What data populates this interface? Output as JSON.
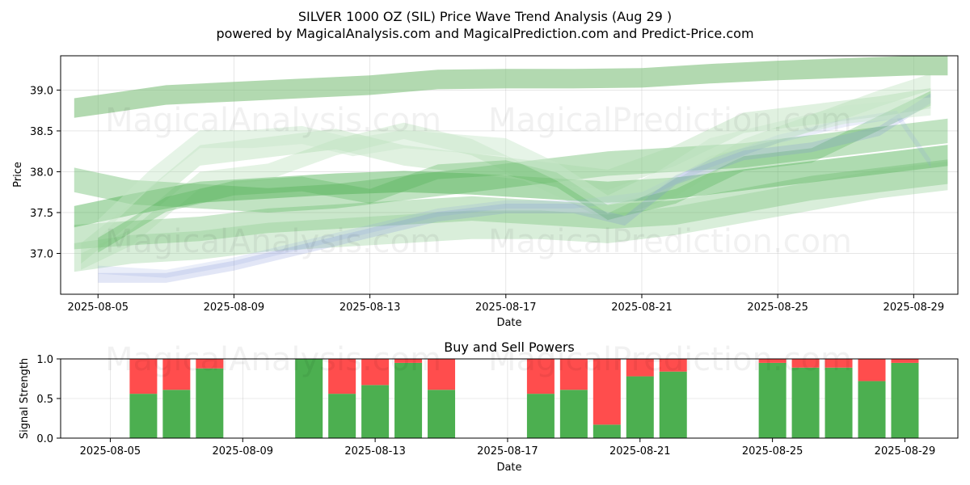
{
  "chart_data": [
    {
      "type": "area",
      "title": "SILVER 1000 OZ (SIL) Price Wave Trend Analysis (Aug 29 )",
      "subtitle": "powered by MagicalAnalysis.com and MagicalPrediction.com and Predict-Price.com",
      "xlabel": "Date",
      "ylabel": "Price",
      "xlim": [
        "2025-08-03.9",
        "2025-08-30.3"
      ],
      "ylim": [
        36.5,
        39.42
      ],
      "x_ticks": [
        "2025-08-05",
        "2025-08-09",
        "2025-08-13",
        "2025-08-17",
        "2025-08-21",
        "2025-08-25",
        "2025-08-29"
      ],
      "y_ticks": [
        37.0,
        37.5,
        38.0,
        38.5,
        39.0
      ],
      "grid": true,
      "watermarks": [
        "MagicalAnalysis.com",
        "MagicalPrediction.com",
        "MagicalAnalysis.com",
        "MagicalPrediction.com"
      ],
      "series": [
        {
          "name": "wave-upper",
          "color": "#7fbf7b",
          "opacity": 0.6,
          "width": 0.24,
          "x": [
            4.3,
            5.5,
            7,
            9,
            11,
            13,
            15,
            17,
            19,
            21,
            23,
            25,
            27,
            29,
            30
          ],
          "values": [
            38.78,
            38.85,
            38.94,
            38.98,
            39.02,
            39.06,
            39.13,
            39.14,
            39.14,
            39.15,
            39.2,
            39.24,
            39.27,
            39.3,
            39.3
          ]
        },
        {
          "name": "wave-band-1",
          "color": "#4caf50",
          "opacity": 0.45,
          "width": 0.26,
          "x": [
            4.3,
            6,
            8,
            10,
            12,
            14,
            16,
            18,
            20,
            22,
            24,
            26,
            28,
            30
          ],
          "values": [
            37.45,
            37.6,
            37.75,
            37.8,
            37.85,
            37.88,
            37.85,
            37.8,
            37.75,
            37.8,
            37.9,
            38.0,
            38.1,
            38.2
          ]
        },
        {
          "name": "wave-band-2",
          "color": "#4caf50",
          "opacity": 0.35,
          "width": 0.3,
          "x": [
            4.3,
            6,
            8,
            10,
            12,
            14,
            16,
            18,
            20,
            22,
            24,
            26,
            28,
            30
          ],
          "values": [
            37.9,
            37.75,
            37.7,
            37.65,
            37.7,
            37.8,
            37.9,
            38.0,
            38.1,
            38.15,
            38.2,
            38.3,
            38.4,
            38.5
          ]
        },
        {
          "name": "wave-band-3",
          "color": "#66bb6a",
          "opacity": 0.35,
          "width": 0.3,
          "x": [
            4.3,
            6,
            8,
            10,
            12,
            14,
            16,
            18,
            20,
            22,
            24,
            26,
            28,
            30
          ],
          "values": [
            37.2,
            37.25,
            37.3,
            37.4,
            37.45,
            37.5,
            37.55,
            37.5,
            37.45,
            37.5,
            37.65,
            37.8,
            37.9,
            38.0
          ]
        },
        {
          "name": "wave-band-4",
          "color": "#81c784",
          "opacity": 0.3,
          "width": 0.35,
          "x": [
            4.3,
            6,
            8,
            10,
            12,
            14,
            16,
            18,
            20,
            22,
            24,
            26,
            28,
            30
          ],
          "values": [
            36.95,
            37.05,
            37.1,
            37.2,
            37.25,
            37.3,
            37.35,
            37.35,
            37.3,
            37.4,
            37.55,
            37.7,
            37.85,
            37.95
          ]
        },
        {
          "name": "wave-band-5",
          "color": "#a5d6a7",
          "opacity": 0.35,
          "width": 0.25,
          "x": [
            4.5,
            6,
            8,
            10,
            12,
            14,
            16,
            18,
            20,
            22,
            24,
            26,
            28,
            29.5
          ],
          "values": [
            37.0,
            37.5,
            38.2,
            38.3,
            38.4,
            38.2,
            38.1,
            38.0,
            37.9,
            38.2,
            38.6,
            38.7,
            38.8,
            38.9
          ]
        },
        {
          "name": "wave-band-6",
          "color": "#a5d6a7",
          "opacity": 0.3,
          "width": 0.2,
          "x": [
            4.5,
            6,
            8,
            10,
            12,
            14,
            16,
            18,
            20,
            22,
            24,
            26,
            28,
            29.5
          ],
          "values": [
            36.9,
            37.2,
            37.9,
            38.0,
            38.3,
            38.5,
            38.3,
            37.9,
            37.5,
            37.8,
            38.3,
            38.6,
            38.9,
            39.1
          ]
        },
        {
          "name": "wave-band-7",
          "color": "#4caf50",
          "opacity": 0.3,
          "width": 0.18,
          "x": [
            5,
            7,
            9,
            11,
            13,
            15,
            17,
            18.5,
            20,
            22,
            24,
            26,
            28,
            29.5
          ],
          "values": [
            37.1,
            37.6,
            37.8,
            37.85,
            37.7,
            38.0,
            38.05,
            37.9,
            37.5,
            37.7,
            38.1,
            38.2,
            38.6,
            38.9
          ]
        },
        {
          "name": "wave-blue",
          "color": "#7b8ed8",
          "opacity": 0.22,
          "width": 0.12,
          "x": [
            5,
            7,
            9,
            11,
            13,
            15,
            17,
            19,
            20.5,
            22,
            24,
            26,
            28,
            29.5
          ],
          "values": [
            36.7,
            36.7,
            36.85,
            37.05,
            37.25,
            37.45,
            37.55,
            37.55,
            37.4,
            37.9,
            38.2,
            38.3,
            38.5,
            38.9
          ]
        },
        {
          "name": "wave-blue-2",
          "color": "#8aa0e0",
          "opacity": 0.18,
          "width": 0.1,
          "x": [
            5,
            7,
            9,
            11,
            13,
            15,
            17,
            19,
            21,
            23,
            25,
            27,
            28.5,
            29.5
          ],
          "values": [
            36.8,
            36.75,
            36.9,
            37.1,
            37.3,
            37.5,
            37.6,
            37.6,
            37.7,
            38.1,
            38.4,
            38.6,
            38.7,
            38.1
          ]
        },
        {
          "name": "wave-band-8",
          "color": "#c8e6c9",
          "opacity": 0.45,
          "width": 0.22,
          "x": [
            5,
            6.5,
            8,
            9.5,
            11,
            12.5,
            14,
            15.5,
            17,
            18.5,
            20,
            21.5,
            23,
            25,
            27,
            29.5
          ],
          "values": [
            37.3,
            37.9,
            38.4,
            38.4,
            38.45,
            38.3,
            38.4,
            38.35,
            38.3,
            38.0,
            37.6,
            37.9,
            38.3,
            38.5,
            38.7,
            38.8
          ]
        }
      ]
    },
    {
      "type": "bar",
      "title": "Buy and Sell Powers",
      "xlabel": "Date",
      "ylabel": "Signal Strength",
      "ylim": [
        0,
        1.0
      ],
      "y_ticks": [
        0.0,
        0.5,
        1.0
      ],
      "x_ticks": [
        "2025-08-05",
        "2025-08-09",
        "2025-08-13",
        "2025-08-17",
        "2025-08-21",
        "2025-08-25",
        "2025-08-29"
      ],
      "buy_color": "#4caf50",
      "sell_color": "#ff4d4d",
      "days": [
        6,
        7,
        8,
        11,
        12,
        13,
        14,
        15,
        18,
        19,
        20,
        21,
        22,
        25,
        26,
        27,
        28,
        29
      ],
      "buy": [
        0.56,
        0.61,
        0.88,
        1.0,
        0.56,
        0.67,
        0.95,
        0.61,
        0.56,
        0.61,
        0.17,
        0.78,
        0.84,
        0.95,
        0.89,
        0.89,
        0.72,
        0.95
      ],
      "sell": [
        0.44,
        0.39,
        0.12,
        0.0,
        0.44,
        0.33,
        0.05,
        0.39,
        0.44,
        0.39,
        0.83,
        0.22,
        0.16,
        0.05,
        0.11,
        0.11,
        0.28,
        0.05
      ]
    }
  ]
}
